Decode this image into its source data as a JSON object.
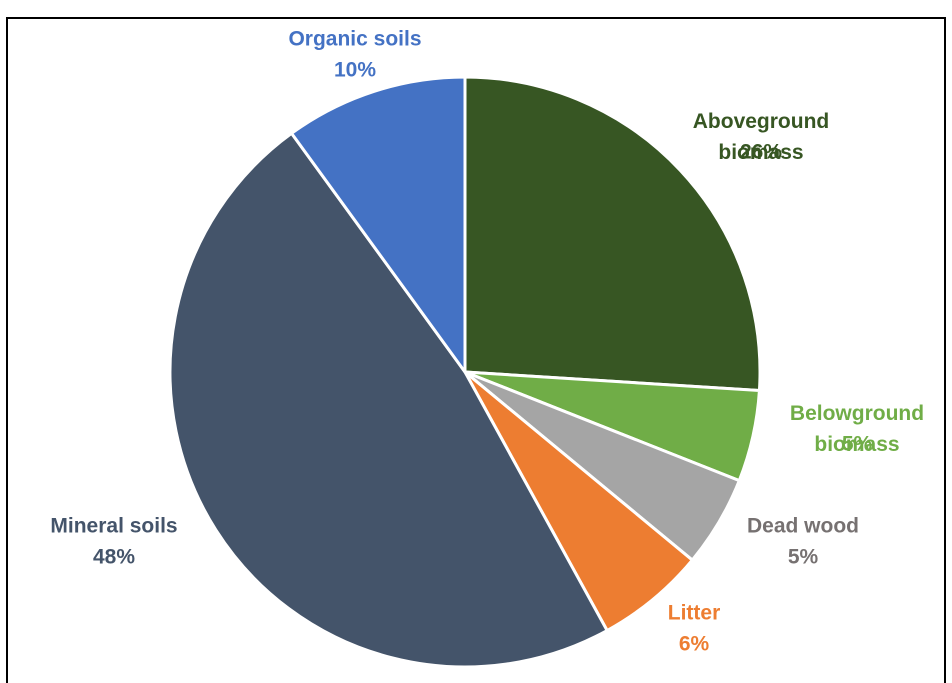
{
  "chart_data": {
    "type": "pie",
    "categories": [
      "Aboveground biomass",
      "Belowground biomass",
      "Dead wood",
      "Litter",
      "Mineral soils",
      "Organic soils"
    ],
    "values": [
      26,
      5,
      5,
      6,
      48,
      10
    ],
    "value_labels": [
      "26%",
      "5%",
      "5%",
      "6%",
      "48%",
      "10%"
    ],
    "colors": [
      "#375623",
      "#70ad47",
      "#a5a5a5",
      "#ed7d31",
      "#44546a",
      "#4472c4"
    ],
    "start_angle": 0,
    "direction": "clockwise"
  }
}
